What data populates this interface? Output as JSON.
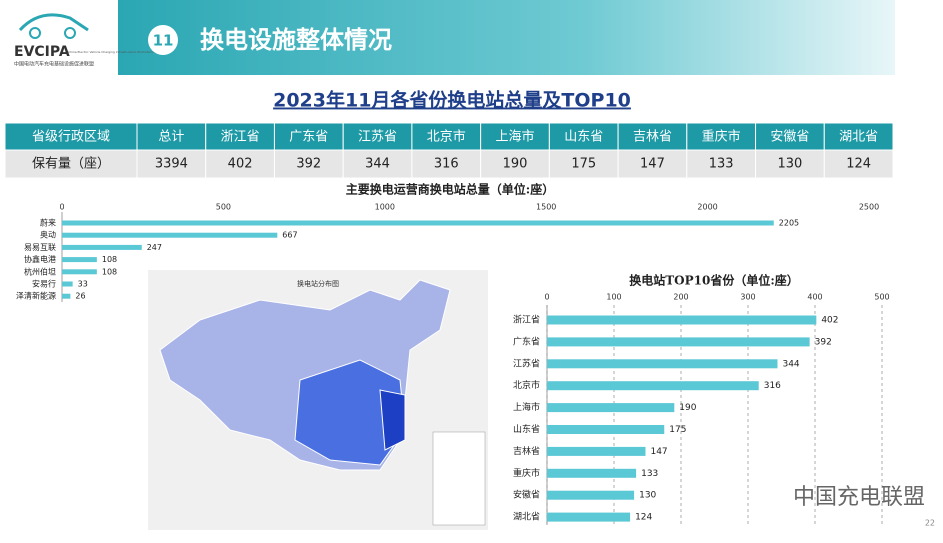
{
  "header": {
    "logo": "EVCIPA",
    "logo_subtitle": "中国电动汽车充电基础设施促进联盟",
    "logo_english": "China Electric Vehicle Charging Infrastructure Promotion Alliance",
    "badge": "11",
    "title": "换电设施整体情况"
  },
  "subtitle": "2023年11月各省份换电站总量及TOP10",
  "table": {
    "header": [
      "省级行政区域",
      "总计",
      "浙江省",
      "广东省",
      "江苏省",
      "北京市",
      "上海市",
      "山东省",
      "吉林省",
      "重庆市",
      "安徽省",
      "湖北省"
    ],
    "rows": [
      [
        "保有量（座）",
        3394,
        402,
        392,
        344,
        316,
        190,
        175,
        147,
        133,
        130,
        124
      ]
    ]
  },
  "map": {
    "title": "换电站分布图"
  },
  "chart_data": [
    {
      "type": "hbar",
      "title": "主要换电运营商换电站总量（单位:座）",
      "categories": [
        "蔚来",
        "奥动",
        "易易互联",
        "协鑫电港",
        "杭州伯坦",
        "安易行",
        "泽清新能源"
      ],
      "values": [
        2205,
        667,
        247,
        108,
        108,
        33,
        26
      ],
      "color": "#5bc8d6",
      "xlim": [
        0,
        2500
      ],
      "xticks": [
        0,
        500,
        1000,
        1500,
        2000,
        2500
      ],
      "grid": false
    },
    {
      "type": "hbar",
      "title": "换电站TOP10省份（单位:座）",
      "categories": [
        "浙江省",
        "广东省",
        "江苏省",
        "北京市",
        "上海市",
        "山东省",
        "吉林省",
        "重庆市",
        "安徽省",
        "湖北省"
      ],
      "values": [
        402,
        392,
        344,
        316,
        190,
        175,
        147,
        133,
        130,
        124
      ],
      "color": "#5bc8d6",
      "xlim": [
        0,
        500
      ],
      "xticks": [
        0,
        100,
        200,
        300,
        400,
        500
      ],
      "grid": true
    }
  ],
  "footer": {
    "watermark": "中国充电联盟",
    "page": "22"
  }
}
